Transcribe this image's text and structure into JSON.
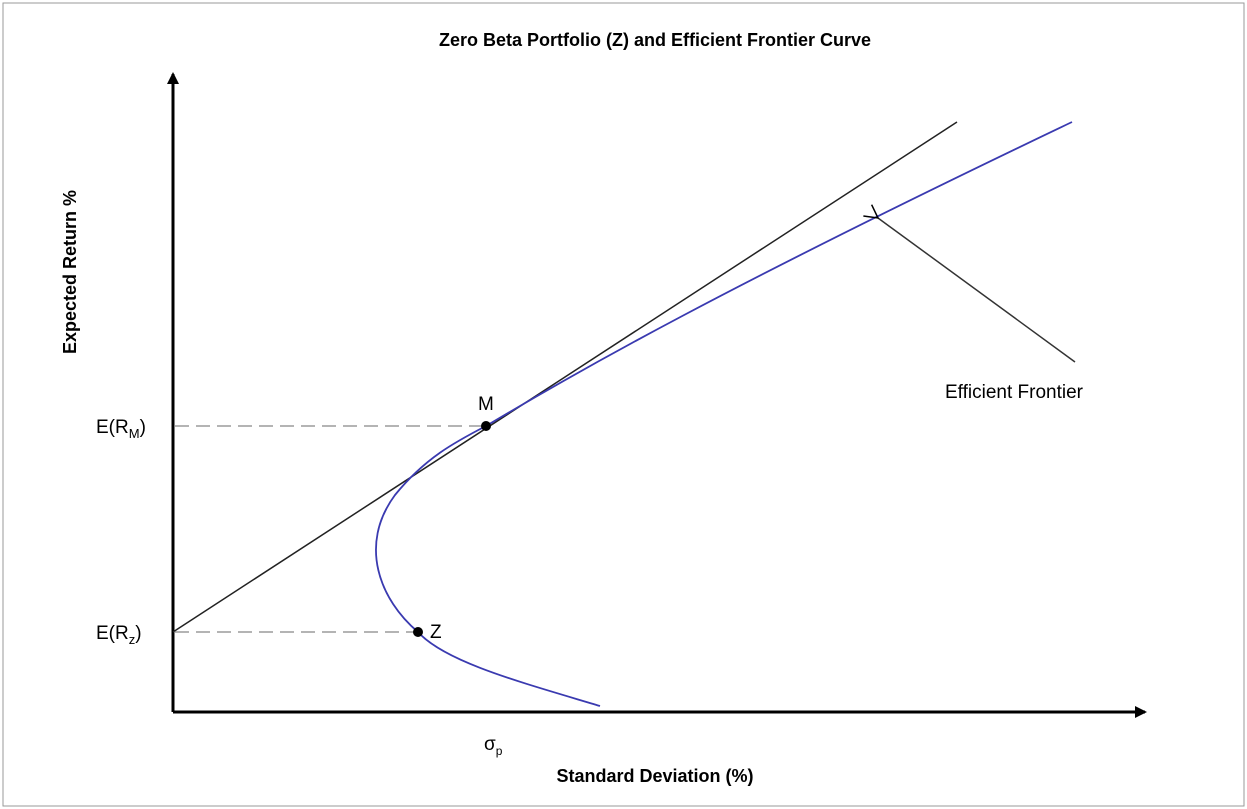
{
  "title": "Zero Beta Portfolio (Z) and Efficient Frontier Curve",
  "x_axis_label": "Standard Deviation (%)",
  "y_axis_label": "Expected Return %",
  "y_markers": [
    {
      "text": "E(R",
      "sub": "M",
      "close": ")"
    },
    {
      "text": "E(R",
      "sub": "z",
      "close": ")"
    }
  ],
  "points": [
    {
      "label": "M"
    },
    {
      "label": "Z"
    }
  ],
  "x_marker": {
    "text": "σ",
    "sub": "p"
  },
  "annotation": "Efficient Frontier"
}
